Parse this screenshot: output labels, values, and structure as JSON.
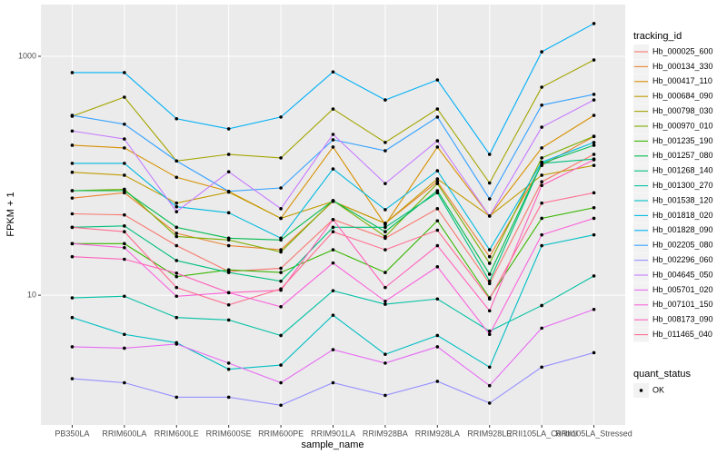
{
  "chart_data": {
    "type": "line",
    "log_y": true,
    "grid": true,
    "x_label": "sample_name",
    "y_label": "FPKM + 1",
    "categories": [
      "PB350LA",
      "RRIM600LA",
      "RRIM600LE",
      "RRIM600SE",
      "RRIM600PE",
      "RRIM901LA",
      "RRIM928BA",
      "RRIM928LA",
      "RRIM928LE",
      "RRII105LA_Control",
      "RRII105LA_Stressed"
    ],
    "ylim": [
      0.82,
      2712
    ],
    "yticks": [
      10,
      1000
    ],
    "legend_title": "tracking_id",
    "point_legend": {
      "title": "quant_status",
      "labels": [
        "OK"
      ],
      "color": "#000000"
    },
    "series": [
      {
        "name": "Hb_000025_600",
        "color": "#F8766D",
        "values": [
          48,
          47,
          26,
          15.8,
          16.8,
          43,
          30,
          53,
          12.5,
          89,
          151
        ]
      },
      {
        "name": "Hb_000134_330",
        "color": "#EA8331",
        "values": [
          65,
          72,
          33,
          26,
          24,
          61,
          40,
          89,
          21,
          122,
          213
        ]
      },
      {
        "name": "Hb_000417_110",
        "color": "#D89000",
        "values": [
          180,
          171,
          97,
          74,
          44,
          174,
          39,
          174,
          46,
          171,
          320
        ]
      },
      {
        "name": "Hb_000684_090",
        "color": "#C09B00",
        "values": [
          107,
          101,
          59,
          73,
          44,
          61,
          40,
          94,
          46,
          101,
          122
        ]
      },
      {
        "name": "Hb_000798_030",
        "color": "#A3A500",
        "values": [
          315,
          455,
          133,
          151,
          141,
          362,
          190,
          362,
          87,
          551,
          932
        ]
      },
      {
        "name": "Hb_000970_010",
        "color": "#7CAE00",
        "values": [
          75,
          77,
          31,
          29,
          23,
          62,
          31,
          86,
          18.5,
          141,
          214
        ]
      },
      {
        "name": "Hb_001235_190",
        "color": "#39B600",
        "values": [
          27,
          27,
          14.3,
          16.3,
          15.5,
          24,
          15.5,
          42,
          9.5,
          44,
          54
        ]
      },
      {
        "name": "Hb_001257_080",
        "color": "#00BB4E",
        "values": [
          75,
          75,
          37,
          30,
          29,
          62,
          34,
          75,
          15,
          127,
          180
        ]
      },
      {
        "name": "Hb_001268_140",
        "color": "#00BF7D",
        "values": [
          37,
          38,
          19.5,
          15.5,
          13.1,
          37,
          37,
          72,
          13.1,
          127,
          138
        ]
      },
      {
        "name": "Hb_001300_270",
        "color": "#00C1A3",
        "values": [
          9.5,
          9.8,
          6.5,
          6.2,
          4.6,
          10.9,
          8.4,
          9.3,
          5,
          8.2,
          14.5
        ]
      },
      {
        "name": "Hb_001538_120",
        "color": "#00BFC4",
        "values": [
          6.5,
          4.7,
          4,
          2.4,
          2.6,
          6.8,
          3.2,
          4.6,
          2.5,
          26,
          32
        ]
      },
      {
        "name": "Hb_001818_020",
        "color": "#00BAE0",
        "values": [
          127,
          127,
          55,
          49,
          30,
          114,
          52,
          110,
          24,
          130,
          190
        ]
      },
      {
        "name": "Hb_001828_090",
        "color": "#00B0F6",
        "values": [
          730,
          730,
          300,
          247,
          310,
          740,
          431,
          634,
          151,
          1090,
          1880
        ]
      },
      {
        "name": "Hb_002205_080",
        "color": "#35A2FF",
        "values": [
          320,
          270,
          133,
          74,
          79,
          200,
          162,
          310,
          64,
          390,
          480
        ]
      },
      {
        "name": "Hb_002296_060",
        "color": "#9590FF",
        "values": [
          2,
          1.85,
          1.4,
          1.4,
          1.2,
          1.85,
          1.45,
          1.9,
          1.25,
          2.5,
          3.3
        ]
      },
      {
        "name": "Hb_004645_050",
        "color": "#C77CFF",
        "values": [
          237,
          203,
          50,
          108,
          53,
          222,
          86,
          196,
          46,
          255,
          431
        ]
      },
      {
        "name": "Hb_005701_020",
        "color": "#E76BF3",
        "values": [
          3.7,
          3.6,
          3.9,
          2.7,
          1.85,
          3.5,
          2.7,
          3.7,
          1.75,
          5.3,
          7.6
        ]
      },
      {
        "name": "Hb_007101_150",
        "color": "#FA62DB",
        "values": [
          27,
          25,
          9.8,
          10.5,
          8,
          18.6,
          8.9,
          17.3,
          4.7,
          32,
          44
        ]
      },
      {
        "name": "Hb_008173_090",
        "color": "#FF62BC",
        "values": [
          21,
          20,
          15.3,
          10.5,
          11,
          43,
          11.6,
          26,
          7.4,
          83,
          136
        ]
      },
      {
        "name": "Hb_011465_040",
        "color": "#FF6C90",
        "values": [
          37,
          34,
          11.6,
          8.3,
          11.3,
          34,
          24,
          35,
          9.3,
          59,
          72
        ]
      }
    ]
  }
}
